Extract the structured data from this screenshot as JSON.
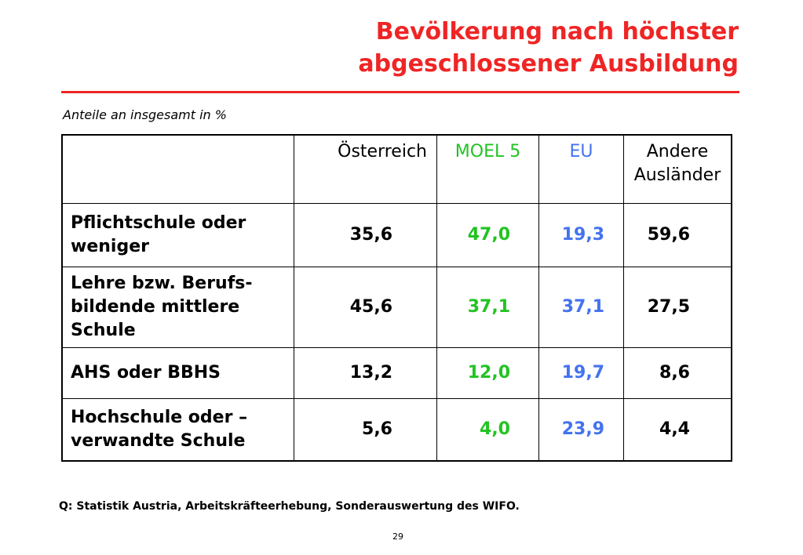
{
  "title": {
    "line1": "Bevölkerung nach höchster",
    "line2": "abgeschlossener Ausbildung"
  },
  "subtitle": "Anteile an insgesamt in %",
  "table": {
    "headers": [
      "",
      "Österreich",
      "MOEL 5",
      "EU",
      "Andere Ausländer"
    ],
    "rows": [
      {
        "label": "Pflichtschule oder weniger",
        "values": [
          "35,6",
          "47,0",
          "19,3",
          "59,6"
        ]
      },
      {
        "label": "Lehre bzw. Berufs-bildende mittlere Schule",
        "values": [
          "45,6",
          "37,1",
          "37,1",
          "27,5"
        ]
      },
      {
        "label": "AHS oder BBHS",
        "values": [
          "13,2",
          "12,0",
          "19,7",
          "8,6"
        ]
      },
      {
        "label": "Hochschule oder – verwandte Schule",
        "values": [
          "5,6",
          "4,0",
          "23,9",
          "4,4"
        ]
      }
    ]
  },
  "colors": {
    "title": "#ef2525",
    "moel": "#22c322",
    "eu": "#4472f0"
  },
  "source": "Q: Statistik Austria, Arbeitskräfteerhebung, Sonderauswertung des WIFO.",
  "page_number": "29"
}
